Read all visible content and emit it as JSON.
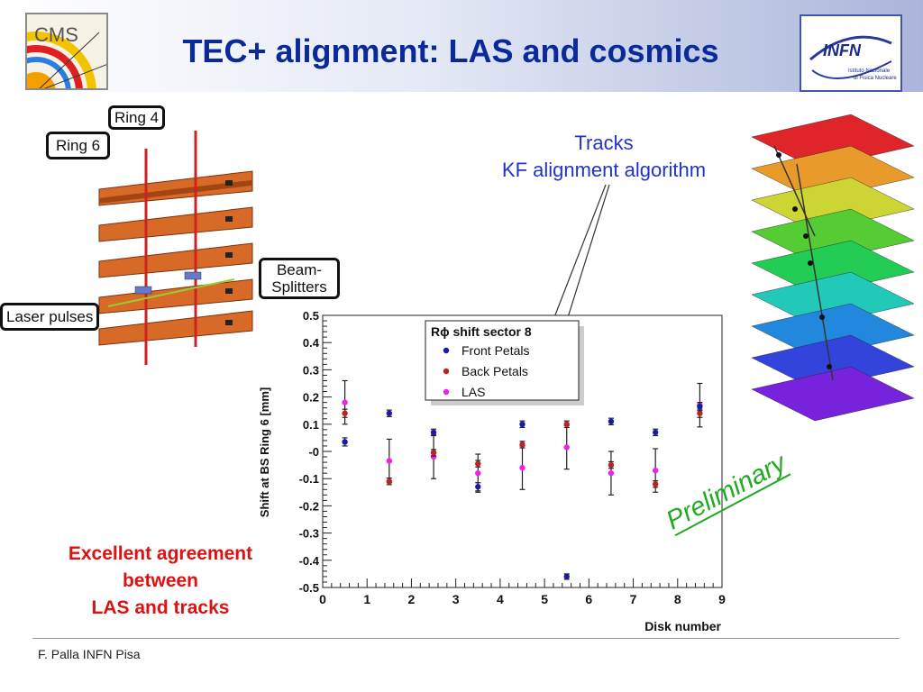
{
  "header": {
    "title": "TEC+ alignment: LAS and cosmics",
    "cms_logo_text": "CMS",
    "infn_logo_text": "INFN",
    "infn_logo_subtext": [
      "Istituto Nazionale",
      "di Fisica Nucleare"
    ]
  },
  "diagram": {
    "ring4_label": "Ring 4",
    "ring6_label": "Ring 6",
    "beam_splitters_label": [
      "Beam-",
      "Splitters"
    ],
    "laser_pulses_label": "Laser pulses"
  },
  "annotations": {
    "tracks_lines": [
      "Tracks",
      "KF alignment algorithm"
    ],
    "agreement_lines": [
      "Excellent agreement",
      "between",
      "LAS and tracks"
    ],
    "preliminary": "Preliminary"
  },
  "footer": {
    "text": "F. Palla INFN Pisa"
  },
  "colors": {
    "title": "#0a2a9a",
    "front": "#1a1aaa",
    "back": "#bb2222",
    "las": "#ee22ee",
    "callout_blue": "#2233cc",
    "agreement_red": "#dd1111",
    "preliminary_green": "#22aa22"
  },
  "chart_data": {
    "type": "scatter",
    "xlabel": "Disk number",
    "ylabel": "Shift at BS Ring 6 [mm]",
    "xlim": [
      0,
      9
    ],
    "ylim": [
      -0.5,
      0.5
    ],
    "x_ticks": [
      "0",
      "1",
      "2",
      "3",
      "4",
      "5",
      "6",
      "7",
      "8",
      "9"
    ],
    "y_ticks": [
      "0.5",
      "0.4",
      "0.3",
      "0.2",
      "0.1",
      "-0",
      "-0.1",
      "-0.2",
      "-0.3",
      "-0.4",
      "-0.5"
    ],
    "legend_title": "Rϕ shift sector 8",
    "legend_position": "top-center",
    "grid": false,
    "series": [
      {
        "name": "Front Petals",
        "x": [
          0.5,
          1.5,
          2.5,
          3.5,
          4.5,
          5.5,
          6.5,
          7.5,
          8.5
        ],
        "y": [
          0.035,
          0.14,
          0.07,
          -0.13,
          0.1,
          -0.46,
          0.11,
          0.07,
          0.165
        ],
        "err": [
          0.015,
          0.012,
          0.012,
          0.015,
          0.012,
          0.01,
          0.012,
          0.012,
          0.015
        ]
      },
      {
        "name": "Back Petals",
        "x": [
          0.5,
          1.5,
          2.5,
          3.5,
          4.5,
          5.5,
          6.5,
          7.5,
          8.5
        ],
        "y": [
          0.14,
          -0.11,
          -0.005,
          -0.045,
          0.025,
          0.1,
          -0.05,
          -0.12,
          0.14
        ],
        "err": [
          0.015,
          0.012,
          0.012,
          0.012,
          0.012,
          0.012,
          0.012,
          0.012,
          0.015
        ]
      },
      {
        "name": "LAS",
        "x": [
          0.5,
          1.5,
          2.5,
          3.5,
          4.5,
          5.5,
          6.5,
          7.5,
          8.5
        ],
        "y": [
          0.18,
          -0.035,
          -0.02,
          -0.08,
          -0.06,
          0.015,
          -0.08,
          -0.07,
          0.17
        ],
        "err": [
          0.08,
          0.08,
          0.08,
          0.07,
          0.08,
          0.08,
          0.08,
          0.08,
          0.08
        ]
      }
    ]
  }
}
